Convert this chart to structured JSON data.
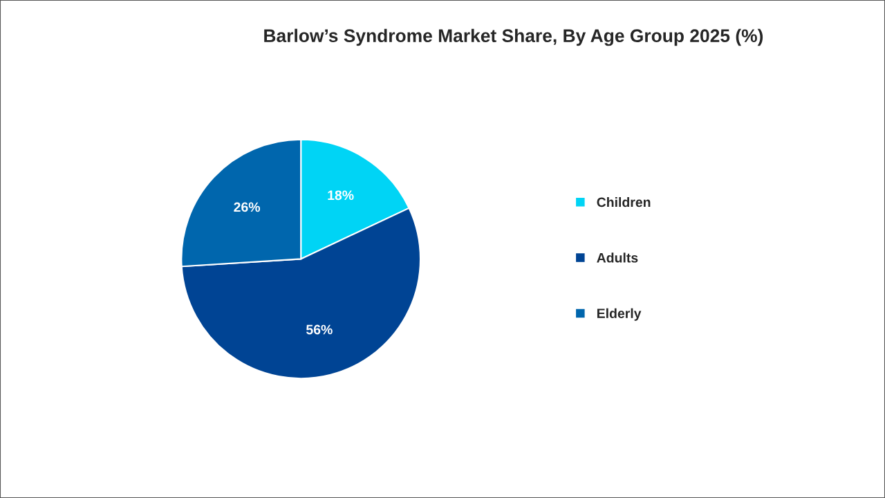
{
  "chart_data": {
    "type": "pie",
    "title": "Barlow’s Syndrome Market Share, By Age Group 2025 (%)",
    "categories": [
      "Children",
      "Adults",
      "Elderly"
    ],
    "values": [
      18,
      56,
      26
    ],
    "colors": [
      "#00d4f5",
      "#004494",
      "#0066ad"
    ],
    "value_labels": [
      "18%",
      "56%",
      "26%"
    ],
    "legend": "right"
  }
}
